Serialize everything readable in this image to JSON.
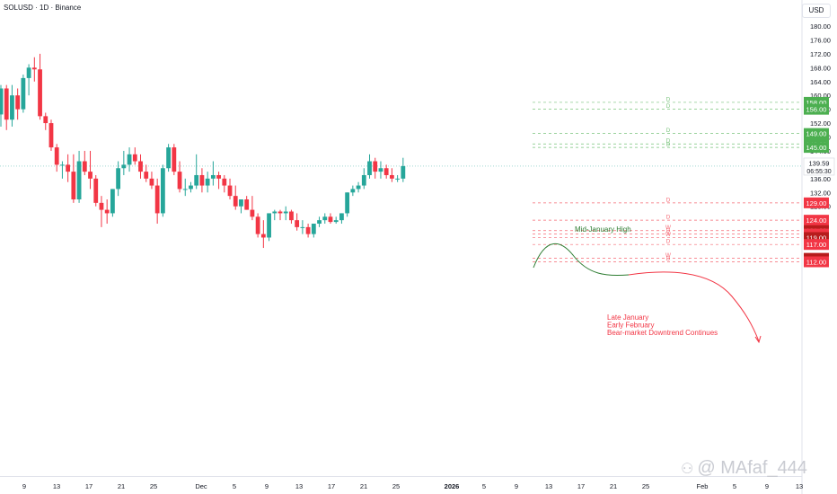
{
  "header": {
    "symbol": "SOLUSD · 1D · Binance",
    "currency": "USD"
  },
  "watermark": "@ MAfaf_444",
  "colors": {
    "up": "#26a69a",
    "down": "#f23645",
    "green_zone": "#4caf50",
    "red_zone": "#f23645",
    "dark_red_zone": "#b71c1c",
    "current_price_line": "#26a69a"
  },
  "chart_data": {
    "type": "candlestick",
    "ylim": [
      108.5,
      181
    ],
    "y_ticks": [
      "128.00",
      "132.00",
      "136.00",
      "140.00",
      "144.00",
      "148.00",
      "152.00",
      "156.00",
      "160.00",
      "164.00",
      "168.00",
      "172.00",
      "176.00",
      "180.00"
    ],
    "x_ticks": [
      "9",
      "13",
      "17",
      "21",
      "25",
      "Dec",
      "5",
      "9",
      "13",
      "17",
      "21",
      "25",
      "2026",
      "5",
      "9",
      "13",
      "17",
      "21",
      "25",
      "Feb",
      "5",
      "9",
      "13"
    ],
    "candles": [
      {
        "o": 154.5,
        "h": 163,
        "l": 151,
        "c": 162
      },
      {
        "o": 162,
        "h": 163,
        "l": 150,
        "c": 153
      },
      {
        "o": 153,
        "h": 163,
        "l": 151,
        "c": 160
      },
      {
        "o": 160,
        "h": 162,
        "l": 153,
        "c": 156
      },
      {
        "o": 156,
        "h": 166,
        "l": 155,
        "c": 165
      },
      {
        "o": 165,
        "h": 169,
        "l": 160,
        "c": 168
      },
      {
        "o": 168,
        "h": 171,
        "l": 164,
        "c": 167.5
      },
      {
        "o": 167.5,
        "h": 172,
        "l": 153,
        "c": 154
      },
      {
        "o": 154,
        "h": 155,
        "l": 150,
        "c": 152
      },
      {
        "o": 152,
        "h": 153,
        "l": 144,
        "c": 145
      },
      {
        "o": 145,
        "h": 146,
        "l": 138,
        "c": 140
      },
      {
        "o": 140,
        "h": 141,
        "l": 136,
        "c": 140
      },
      {
        "o": 140,
        "h": 143,
        "l": 135,
        "c": 138
      },
      {
        "o": 138,
        "h": 143,
        "l": 129,
        "c": 130
      },
      {
        "o": 130,
        "h": 144,
        "l": 129,
        "c": 141
      },
      {
        "o": 141,
        "h": 144,
        "l": 137,
        "c": 138
      },
      {
        "o": 138,
        "h": 144,
        "l": 133,
        "c": 136
      },
      {
        "o": 136,
        "h": 137,
        "l": 128,
        "c": 129
      },
      {
        "o": 129,
        "h": 131,
        "l": 122,
        "c": 127
      },
      {
        "o": 127,
        "h": 130,
        "l": 123,
        "c": 126
      },
      {
        "o": 126,
        "h": 133,
        "l": 125,
        "c": 133
      },
      {
        "o": 133,
        "h": 141,
        "l": 131,
        "c": 139
      },
      {
        "o": 139,
        "h": 144,
        "l": 137,
        "c": 140
      },
      {
        "o": 140,
        "h": 145,
        "l": 138,
        "c": 143
      },
      {
        "o": 143,
        "h": 145,
        "l": 140,
        "c": 141
      },
      {
        "o": 141,
        "h": 143,
        "l": 136,
        "c": 138
      },
      {
        "o": 138,
        "h": 140,
        "l": 135,
        "c": 136
      },
      {
        "o": 136,
        "h": 138,
        "l": 133,
        "c": 134
      },
      {
        "o": 134,
        "h": 136,
        "l": 123,
        "c": 126
      },
      {
        "o": 126,
        "h": 140,
        "l": 125,
        "c": 139
      },
      {
        "o": 139,
        "h": 146,
        "l": 138,
        "c": 145
      },
      {
        "o": 145,
        "h": 146,
        "l": 137,
        "c": 138
      },
      {
        "o": 138,
        "h": 141,
        "l": 132,
        "c": 133
      },
      {
        "o": 133,
        "h": 136,
        "l": 131,
        "c": 133
      },
      {
        "o": 133,
        "h": 135,
        "l": 132,
        "c": 134
      },
      {
        "o": 134,
        "h": 143,
        "l": 133,
        "c": 137
      },
      {
        "o": 137,
        "h": 139,
        "l": 132,
        "c": 134
      },
      {
        "o": 134,
        "h": 138,
        "l": 132,
        "c": 136
      },
      {
        "o": 136,
        "h": 141,
        "l": 134,
        "c": 137
      },
      {
        "o": 137,
        "h": 138,
        "l": 133,
        "c": 136
      },
      {
        "o": 136,
        "h": 137,
        "l": 132,
        "c": 134
      },
      {
        "o": 134,
        "h": 136,
        "l": 130,
        "c": 131
      },
      {
        "o": 131,
        "h": 134,
        "l": 127,
        "c": 128
      },
      {
        "o": 128,
        "h": 130,
        "l": 126,
        "c": 130
      },
      {
        "o": 130,
        "h": 131,
        "l": 127,
        "c": 127
      },
      {
        "o": 127,
        "h": 131,
        "l": 124,
        "c": 125
      },
      {
        "o": 125,
        "h": 126,
        "l": 119,
        "c": 120
      },
      {
        "o": 120,
        "h": 124,
        "l": 116,
        "c": 119
      },
      {
        "o": 119,
        "h": 126,
        "l": 118,
        "c": 126
      },
      {
        "o": 126,
        "h": 127,
        "l": 124,
        "c": 126.5
      },
      {
        "o": 126.5,
        "h": 127,
        "l": 124,
        "c": 126
      },
      {
        "o": 126,
        "h": 128,
        "l": 124,
        "c": 126.5
      },
      {
        "o": 126.5,
        "h": 127,
        "l": 123,
        "c": 124
      },
      {
        "o": 124,
        "h": 126,
        "l": 121,
        "c": 122
      },
      {
        "o": 122,
        "h": 124,
        "l": 120,
        "c": 122
      },
      {
        "o": 122,
        "h": 123,
        "l": 119,
        "c": 120
      },
      {
        "o": 120,
        "h": 123,
        "l": 119,
        "c": 123
      },
      {
        "o": 123,
        "h": 125,
        "l": 122,
        "c": 124
      },
      {
        "o": 124,
        "h": 126,
        "l": 123,
        "c": 125
      },
      {
        "o": 125,
        "h": 126,
        "l": 123,
        "c": 123.5
      },
      {
        "o": 123.5,
        "h": 125,
        "l": 123,
        "c": 124
      },
      {
        "o": 124,
        "h": 126,
        "l": 123,
        "c": 126
      },
      {
        "o": 126,
        "h": 132,
        "l": 125,
        "c": 132
      },
      {
        "o": 132,
        "h": 134,
        "l": 131,
        "c": 133
      },
      {
        "o": 133,
        "h": 135,
        "l": 132,
        "c": 134
      },
      {
        "o": 134,
        "h": 139,
        "l": 133,
        "c": 137
      },
      {
        "o": 137,
        "h": 143,
        "l": 136,
        "c": 141
      },
      {
        "o": 141,
        "h": 142,
        "l": 136,
        "c": 138
      },
      {
        "o": 138,
        "h": 141,
        "l": 136,
        "c": 139
      },
      {
        "o": 139,
        "h": 140,
        "l": 136,
        "c": 137
      },
      {
        "o": 137,
        "h": 139,
        "l": 135,
        "c": 136
      },
      {
        "o": 136,
        "h": 137,
        "l": 135,
        "c": 136
      },
      {
        "o": 136,
        "h": 142,
        "l": 135,
        "c": 139.6
      }
    ],
    "current_price": {
      "value": 139.59,
      "label": "139.59",
      "countdown": "06:55:30"
    },
    "zones_green": [
      {
        "value": 158.0,
        "label": "158.00",
        "tag": "D"
      },
      {
        "value": 156.0,
        "label": "156.00",
        "tag": "D"
      },
      {
        "value": 149.0,
        "label": "149.00",
        "tag": "D"
      },
      {
        "value": 146.0,
        "label": "146.00",
        "tag": "D"
      },
      {
        "value": 145.0,
        "label": "145.00",
        "tag": "D"
      }
    ],
    "zones_red": [
      {
        "value": 129.0,
        "label": "129.00",
        "tag": "D",
        "dark": false
      },
      {
        "value": 124.0,
        "label": "124.00",
        "tag": "D",
        "dark": false
      },
      {
        "value": 121.0,
        "label": "121.00",
        "tag": "W",
        "dark": true
      },
      {
        "value": 120.0,
        "label": "120.00",
        "tag": "D",
        "dark": false
      },
      {
        "value": 119.0,
        "label": "119.00",
        "tag": "W",
        "dark": true
      },
      {
        "value": 117.0,
        "label": "117.00",
        "tag": "D",
        "dark": false
      },
      {
        "value": 113.0,
        "label": "113.00",
        "tag": "W",
        "dark": true
      },
      {
        "value": 112.0,
        "label": "112.00",
        "tag": "D",
        "dark": false
      }
    ],
    "annotations": {
      "mid_january": "Mid-January High",
      "late_january": [
        "Late January",
        "Early February",
        "Bear-market Downtrend Continues"
      ]
    }
  }
}
